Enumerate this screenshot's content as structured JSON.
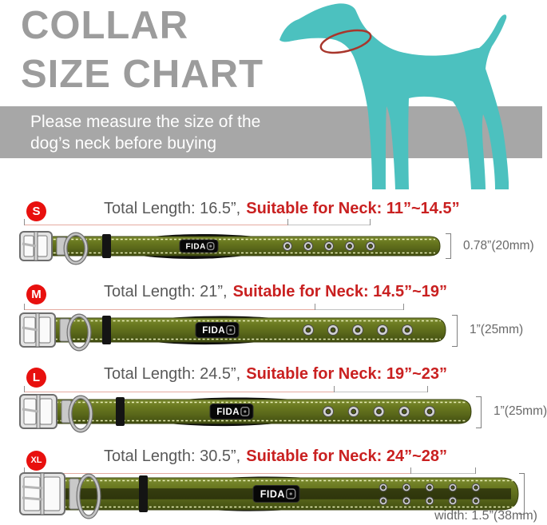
{
  "title": {
    "line1": "COLLAR",
    "line2": "SIZE CHART"
  },
  "banner": {
    "line1": "Please measure the size of the",
    "line2": "dog’s neck before buying"
  },
  "brand_label": "FIDA",
  "colors": {
    "title_gray": "#9c9c9c",
    "banner_gray": "#a7a7a7",
    "banner_text": "#ffffff",
    "dog_teal": "#4cc1bf",
    "neck_ring_red": "#a8362c",
    "badge_red": "#e8100e",
    "highlight_red": "#c92020",
    "spec_text_gray": "#595959",
    "width_label_gray": "#686868",
    "collar_olive": "#5d6b1d"
  },
  "sizes": [
    {
      "code": "S",
      "total_length": "Total Length: 16.5”,",
      "neck_range": "Suitable for Neck: 11”~14.5”",
      "width": "0.78”(20mm)"
    },
    {
      "code": "M",
      "total_length": "Total Length: 21”,",
      "neck_range": "Suitable for Neck: 14.5”~19”",
      "width": "1”(25mm)"
    },
    {
      "code": "L",
      "total_length": "Total Length: 24.5”,",
      "neck_range": "Suitable for Neck: 19”~23”",
      "width": "1”(25mm)"
    },
    {
      "code": "XL",
      "total_length": "Total Length: 30.5”,",
      "neck_range": "Suitable for Neck: 24”~28”",
      "width": "width: 1.5”(38mm)"
    }
  ]
}
